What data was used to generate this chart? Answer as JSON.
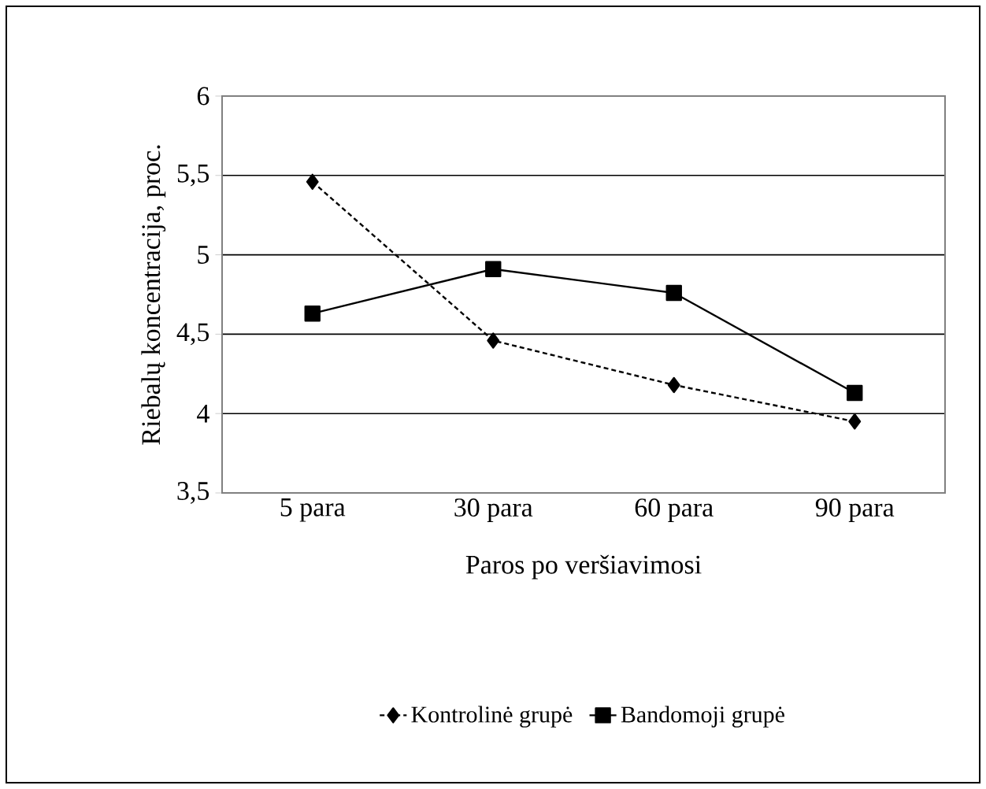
{
  "chart_data": {
    "type": "line",
    "xlabel": "Paros po veršiavimosi",
    "ylabel": "Riebalų koncentracija, proc.",
    "categories": [
      "5 para",
      "30 para",
      "60 para",
      "90 para"
    ],
    "series": [
      {
        "name": "Kontrolinė grupė",
        "color": "#000000",
        "values": [
          5.46,
          4.46,
          4.18,
          3.95
        ],
        "marker": "diamond",
        "line_style": "dashed"
      },
      {
        "name": "Bandomoji grupė",
        "color": "#000000",
        "values": [
          4.63,
          4.91,
          4.76,
          4.13
        ],
        "marker": "square",
        "line_style": "solid"
      }
    ],
    "ylim": [
      3.5,
      6
    ],
    "yticks": [
      {
        "value": 3.5,
        "label": "3,5"
      },
      4,
      {
        "value": 4.5,
        "label": "4,5"
      },
      5,
      {
        "value": 5.5,
        "label": "5,5"
      },
      6
    ],
    "grid": "y",
    "legend": "bottom"
  }
}
